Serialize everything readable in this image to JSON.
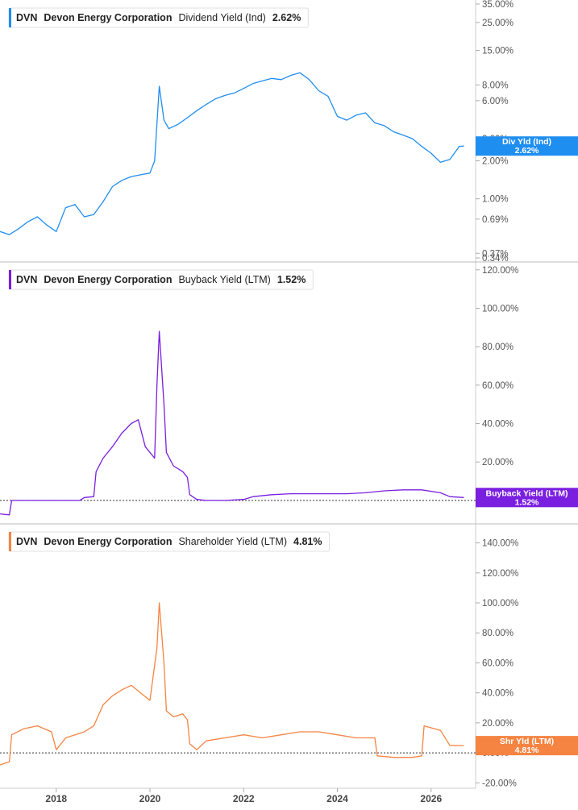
{
  "chart_data": [
    {
      "type": "line",
      "ticker": "DVN",
      "company": "Devon Energy Corporation",
      "metric": "Dividend Yield (Ind)",
      "current_value": "2.62%",
      "badge_label": "Div Yld (Ind)",
      "badge_value": "2.62%",
      "color": "#1f8ef1",
      "yscale": "log",
      "ylim": [
        0.34,
        35
      ],
      "y_ticks": [
        0.34,
        0.37,
        0.69,
        1.0,
        2.0,
        3.0,
        6.0,
        8.0,
        15.0,
        25.0,
        35.0
      ],
      "y_tick_labels": [
        "0.34%",
        "0.37%",
        "0.69%",
        "1.00%",
        "2.00%",
        "3.00%",
        "6.00%",
        "8.00%",
        "15.00%",
        "25.00%",
        "35.00%"
      ],
      "x": [
        2016.8,
        2017.0,
        2017.2,
        2017.4,
        2017.6,
        2017.8,
        2018.0,
        2018.2,
        2018.4,
        2018.6,
        2018.8,
        2019.0,
        2019.2,
        2019.4,
        2019.6,
        2019.8,
        2020.0,
        2020.1,
        2020.2,
        2020.3,
        2020.4,
        2020.6,
        2020.8,
        2021.0,
        2021.2,
        2021.4,
        2021.6,
        2021.8,
        2022.0,
        2022.2,
        2022.4,
        2022.6,
        2022.8,
        2023.0,
        2023.2,
        2023.4,
        2023.6,
        2023.8,
        2024.0,
        2024.2,
        2024.4,
        2024.6,
        2024.8,
        2025.0,
        2025.2,
        2025.4,
        2025.6,
        2025.8,
        2026.0,
        2026.2,
        2026.4,
        2026.6,
        2026.7
      ],
      "values": [
        0.55,
        0.52,
        0.58,
        0.66,
        0.72,
        0.62,
        0.55,
        0.85,
        0.9,
        0.72,
        0.75,
        0.95,
        1.25,
        1.4,
        1.5,
        1.55,
        1.6,
        2.0,
        7.8,
        4.2,
        3.6,
        3.9,
        4.4,
        5.0,
        5.6,
        6.2,
        6.6,
        6.9,
        7.5,
        8.2,
        8.6,
        9.0,
        8.8,
        9.5,
        10.0,
        8.8,
        7.2,
        6.5,
        4.5,
        4.2,
        4.6,
        4.8,
        4.0,
        3.8,
        3.4,
        3.2,
        3.0,
        2.6,
        2.3,
        1.95,
        2.05,
        2.6,
        2.62
      ]
    },
    {
      "type": "line",
      "ticker": "DVN",
      "company": "Devon Energy Corporation",
      "metric": "Buyback Yield (LTM)",
      "current_value": "1.52%",
      "badge_label": "Buyback Yield (LTM)",
      "badge_value": "1.52%",
      "color": "#7a1fe0",
      "ylim": [
        -8,
        122
      ],
      "y_ticks": [
        20,
        40,
        60,
        80,
        100,
        120
      ],
      "y_tick_labels": [
        "20.00%",
        "40.00%",
        "60.00%",
        "80.00%",
        "100.00%",
        "120.00%"
      ],
      "reference_line": 0,
      "x": [
        2016.8,
        2017.0,
        2017.05,
        2017.3,
        2017.6,
        2017.9,
        2018.2,
        2018.5,
        2018.6,
        2018.8,
        2018.85,
        2019.0,
        2019.2,
        2019.4,
        2019.6,
        2019.75,
        2019.9,
        2020.0,
        2020.1,
        2020.15,
        2020.2,
        2020.3,
        2020.35,
        2020.5,
        2020.7,
        2020.8,
        2020.85,
        2021.0,
        2021.2,
        2021.6,
        2022.0,
        2022.2,
        2022.6,
        2023.0,
        2023.4,
        2023.8,
        2024.2,
        2024.6,
        2025.0,
        2025.4,
        2025.8,
        2026.2,
        2026.4,
        2026.7
      ],
      "values": [
        -7,
        -7.5,
        0,
        0,
        0,
        0,
        0,
        0,
        1.5,
        2,
        15,
        22,
        28,
        35,
        40,
        42,
        28,
        25,
        22,
        60,
        88,
        50,
        25,
        18,
        15,
        12,
        3,
        0.5,
        0,
        0,
        0.5,
        2,
        3,
        3.5,
        3.5,
        3.5,
        3.5,
        4,
        5,
        5.5,
        5.5,
        4,
        2,
        1.52
      ]
    },
    {
      "type": "line",
      "ticker": "DVN",
      "company": "Devon Energy Corporation",
      "metric": "Shareholder Yield (LTM)",
      "current_value": "4.81%",
      "badge_label": "Shr Yld (LTM)",
      "badge_value": "4.81%",
      "color": "#f58442",
      "ylim": [
        -22,
        150
      ],
      "y_ticks": [
        -20,
        0,
        20,
        40,
        60,
        80,
        100,
        120,
        140
      ],
      "y_tick_labels": [
        "-20.00%",
        "0.00%",
        "20.00%",
        "40.00%",
        "60.00%",
        "80.00%",
        "100.00%",
        "120.00%",
        "140.00%"
      ],
      "reference_line": 0,
      "x": [
        2016.8,
        2017.0,
        2017.05,
        2017.3,
        2017.6,
        2017.9,
        2018.0,
        2018.2,
        2018.4,
        2018.6,
        2018.8,
        2019.0,
        2019.2,
        2019.4,
        2019.6,
        2019.8,
        2020.0,
        2020.15,
        2020.2,
        2020.3,
        2020.35,
        2020.5,
        2020.7,
        2020.8,
        2020.85,
        2021.0,
        2021.2,
        2021.6,
        2022.0,
        2022.4,
        2022.8,
        2023.2,
        2023.6,
        2024.0,
        2024.4,
        2024.8,
        2024.85,
        2025.2,
        2025.6,
        2025.8,
        2025.85,
        2026.2,
        2026.4,
        2026.7
      ],
      "values": [
        -8,
        -6,
        12,
        16,
        18,
        14,
        2,
        10,
        12,
        14,
        18,
        32,
        38,
        42,
        45,
        40,
        35,
        70,
        100,
        60,
        28,
        24,
        26,
        22,
        6,
        2,
        8,
        10,
        12,
        10,
        12,
        14,
        14,
        12,
        10,
        10,
        -2,
        -3,
        -3,
        -2,
        18,
        15,
        5,
        4.81
      ]
    }
  ],
  "x_axis": {
    "range": [
      2016.8,
      2026.95
    ],
    "ticks": [
      2018,
      2020,
      2022,
      2024,
      2026
    ],
    "tick_labels": [
      "2018",
      "2020",
      "2022",
      "2024",
      "2026"
    ]
  }
}
